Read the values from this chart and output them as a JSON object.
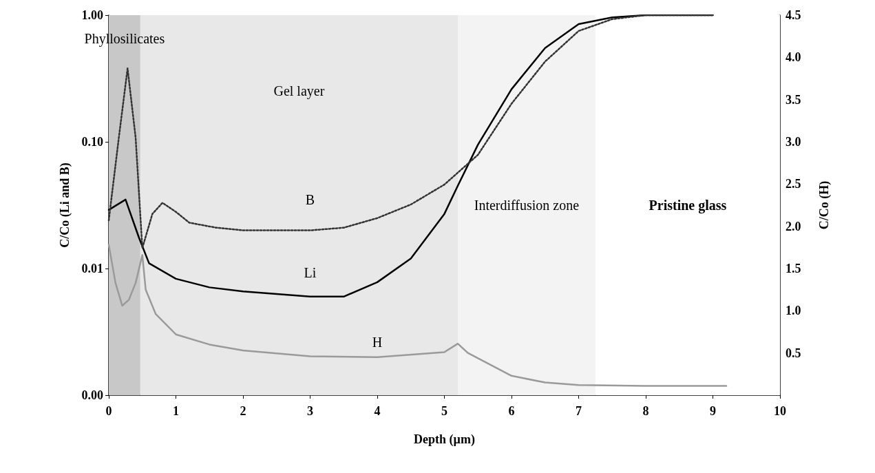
{
  "chart_data": {
    "type": "line",
    "xlabel": "Depth (µm)",
    "ylabel": "C/Co (Li and B)",
    "y2label": "C/Co (H)",
    "log": "y",
    "marker": "none",
    "xlim": [
      0,
      10
    ],
    "xticks": [
      0,
      1,
      2,
      3,
      4,
      5,
      6,
      7,
      8,
      9,
      10
    ],
    "ylim": [
      0.001,
      1
    ],
    "yticks": [
      {
        "value": 0.001,
        "label": "0.00"
      },
      {
        "value": 0.01,
        "label": "0.01"
      },
      {
        "value": 0.1,
        "label": "0.10"
      },
      {
        "value": 1,
        "label": "1.00"
      }
    ],
    "y2lim": [
      0,
      4.5
    ],
    "y2ticks": [
      {
        "value": 0.5,
        "label": "0.5"
      },
      {
        "value": 1,
        "label": "1.0"
      },
      {
        "value": 1.5,
        "label": "1.5"
      },
      {
        "value": 2,
        "label": "2.0"
      },
      {
        "value": 2.5,
        "label": "2.5"
      },
      {
        "value": 3,
        "label": "3.0"
      },
      {
        "value": 3.5,
        "label": "3.5"
      },
      {
        "value": 4,
        "label": "4.0"
      },
      {
        "value": 4.5,
        "label": "4.5"
      }
    ],
    "bands": [
      {
        "axis": "x",
        "from": 0,
        "to": 0.47,
        "label": "Phyllosilicates",
        "color": "#c8c8c8"
      },
      {
        "axis": "x",
        "from": 0.47,
        "to": 5.2,
        "label": "Gel layer",
        "color": "#e8e8e8"
      },
      {
        "axis": "x",
        "from": 5.2,
        "to": 7.25,
        "label": "Interdiffusion zone",
        "color": "#f3f3f3"
      },
      {
        "axis": "x",
        "from": 7.25,
        "to": 10,
        "label": "Pristine glass",
        "color": "#ffffff"
      }
    ],
    "series": [
      {
        "name": "Li",
        "color": "#000000",
        "line_style": "solid",
        "x": [
          0,
          0.25,
          0.45,
          0.6,
          1,
          1.5,
          2,
          3,
          3.5,
          4,
          4.5,
          5,
          5.2,
          5.5,
          6,
          6.5,
          7,
          7.5,
          8,
          9
        ],
        "values": [
          0.029,
          0.035,
          0.0175,
          0.011,
          0.0083,
          0.0071,
          0.0066,
          0.006,
          0.006,
          0.0078,
          0.012,
          0.027,
          0.045,
          0.095,
          0.26,
          0.55,
          0.85,
          0.96,
          1,
          1
        ]
      },
      {
        "name": "B",
        "color": "#333333",
        "line_style": "dotted",
        "x": [
          0,
          0.15,
          0.28,
          0.4,
          0.5,
          0.65,
          0.8,
          1,
          1.2,
          1.6,
          2,
          3,
          3.5,
          4,
          4.5,
          5,
          5.5,
          6,
          6.5,
          7,
          7.5,
          8,
          9
        ],
        "values": [
          0.024,
          0.108,
          0.38,
          0.108,
          0.0145,
          0.027,
          0.033,
          0.028,
          0.023,
          0.021,
          0.02,
          0.02,
          0.021,
          0.025,
          0.032,
          0.046,
          0.079,
          0.2,
          0.43,
          0.75,
          0.93,
          1,
          1
        ]
      },
      {
        "name": "H",
        "color": "#9a9a9a",
        "line_style": "solid",
        "axis": "y2",
        "x": [
          0,
          0.1,
          0.2,
          0.3,
          0.4,
          0.5,
          0.55,
          0.7,
          1,
          1.5,
          2,
          3,
          4,
          5,
          5.2,
          5.35,
          6,
          6.5,
          7,
          8,
          9.2
        ],
        "values": [
          1.78,
          1.33,
          1.06,
          1.13,
          1.33,
          1.66,
          1.25,
          0.96,
          0.72,
          0.6,
          0.53,
          0.46,
          0.45,
          0.51,
          0.61,
          0.5,
          0.23,
          0.15,
          0.12,
          0.11,
          0.11
        ]
      }
    ]
  }
}
